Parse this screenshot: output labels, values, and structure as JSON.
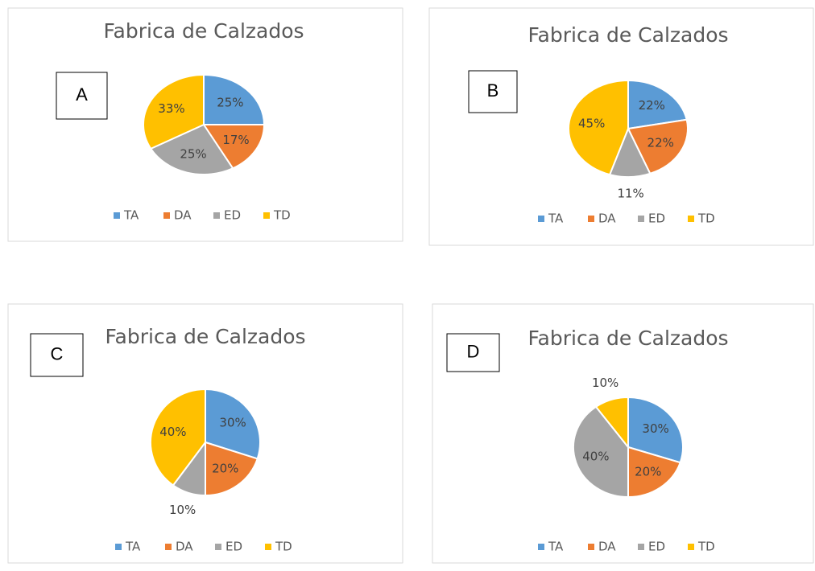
{
  "chart_data": [
    {
      "type": "pie",
      "panel_label": "A",
      "title": "Fabrica de Calzados",
      "categories": [
        "TA",
        "DA",
        "ED",
        "TD"
      ],
      "values": [
        25,
        17,
        25,
        33
      ],
      "value_labels": [
        "25%",
        "17%",
        "25%",
        "33%"
      ],
      "colors": [
        "#5b9bd5",
        "#ed7d31",
        "#a5a5a5",
        "#ffc000"
      ]
    },
    {
      "type": "pie",
      "panel_label": "B",
      "title": "Fabrica de Calzados",
      "categories": [
        "TA",
        "DA",
        "ED",
        "TD"
      ],
      "values": [
        22,
        22,
        11,
        45
      ],
      "value_labels": [
        "22%",
        "22%",
        "11%",
        "45%"
      ],
      "colors": [
        "#5b9bd5",
        "#ed7d31",
        "#a5a5a5",
        "#ffc000"
      ]
    },
    {
      "type": "pie",
      "panel_label": "C",
      "title": "Fabrica de Calzados",
      "categories": [
        "TA",
        "DA",
        "ED",
        "TD"
      ],
      "values": [
        30,
        20,
        10,
        40
      ],
      "value_labels": [
        "30%",
        "20%",
        "10%",
        "40%"
      ],
      "colors": [
        "#5b9bd5",
        "#ed7d31",
        "#a5a5a5",
        "#ffc000"
      ]
    },
    {
      "type": "pie",
      "panel_label": "D",
      "title": "Fabrica de Calzados",
      "categories": [
        "TA",
        "DA",
        "ED",
        "TD"
      ],
      "values": [
        30,
        20,
        40,
        10
      ],
      "value_labels": [
        "30%",
        "20%",
        "40%",
        "10%"
      ],
      "colors": [
        "#5b9bd5",
        "#ed7d31",
        "#a5a5a5",
        "#ffc000"
      ]
    }
  ]
}
